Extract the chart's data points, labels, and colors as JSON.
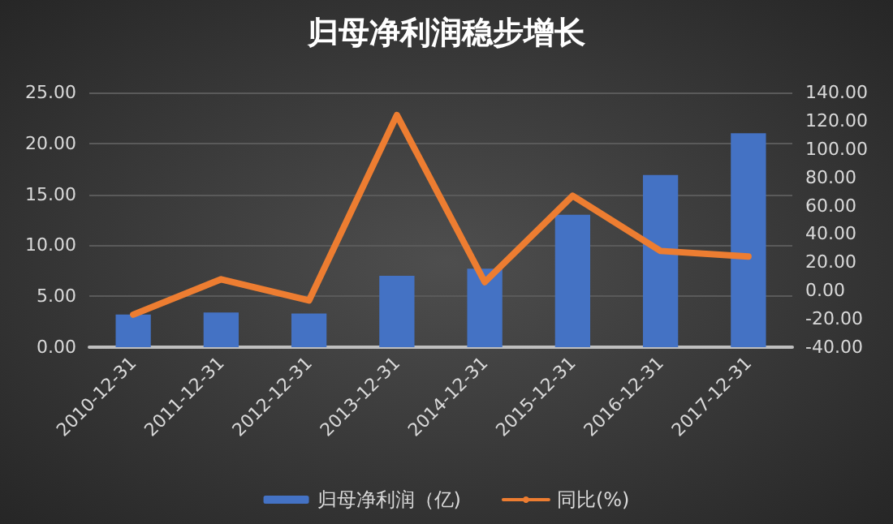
{
  "chart_data": {
    "type": "bar",
    "title": "归母净利润稳步增长",
    "categories": [
      "2010-12-31",
      "2011-12-31",
      "2012-12-31",
      "2013-12-31",
      "2014-12-31",
      "2015-12-31",
      "2016-12-31",
      "2017-12-31"
    ],
    "series": [
      {
        "name": "归母净利润（亿)",
        "color": "#4472c4",
        "values": [
          3.2,
          3.4,
          3.3,
          7.0,
          7.7,
          13.0,
          16.9,
          21.0
        ]
      },
      {
        "name": "同比(%)",
        "type": "line",
        "axis": "y2",
        "color": "#ed7d31",
        "values": [
          -17,
          8,
          -7,
          124,
          6,
          67,
          28,
          24
        ]
      }
    ],
    "ylim": [
      0,
      25
    ],
    "yticks": [
      {
        "value": 0,
        "label": "0.00"
      },
      {
        "value": 5,
        "label": "5.00"
      },
      {
        "value": 10,
        "label": "10.00"
      },
      {
        "value": 15,
        "label": "15.00"
      },
      {
        "value": 20,
        "label": "20.00"
      },
      {
        "value": 25,
        "label": "25.00"
      }
    ],
    "y2lim": [
      -40,
      140
    ],
    "y2ticks": [
      {
        "value": -40,
        "label": "-40.00"
      },
      {
        "value": -20,
        "label": "-20.00"
      },
      {
        "value": 0,
        "label": "0.00"
      },
      {
        "value": 20,
        "label": "20.00"
      },
      {
        "value": 40,
        "label": "40.00"
      },
      {
        "value": 60,
        "label": "60.00"
      },
      {
        "value": 80,
        "label": "80.00"
      },
      {
        "value": 100,
        "label": "100.00"
      },
      {
        "value": 120,
        "label": "120.00"
      },
      {
        "value": 140,
        "label": "140.00"
      }
    ],
    "grid": "y",
    "legend": "bottom",
    "marker": "none",
    "line_style": "solid"
  }
}
